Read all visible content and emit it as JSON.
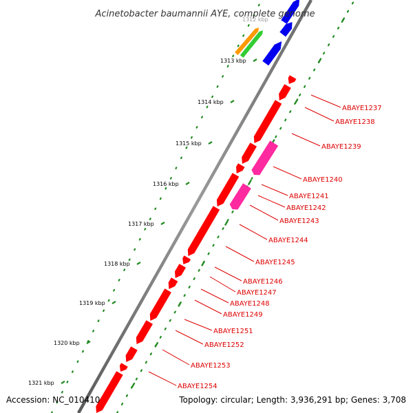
{
  "title": "Acinetobacter baumannii AYE, complete genome",
  "footer": {
    "accession": "Accession: NC_010410",
    "topology": "Topology: circular; Length: 3,936,291 bp; Genes: 3,708"
  },
  "kbp_ticks": [
    {
      "label": "1312 kbp",
      "faded": true
    },
    {
      "label": "1313 kbp"
    },
    {
      "label": "1314 kbp"
    },
    {
      "label": "1315 kbp"
    },
    {
      "label": "1316 kbp"
    },
    {
      "label": "1317 kbp"
    },
    {
      "label": "1318 kbp"
    },
    {
      "label": "1319 kbp"
    },
    {
      "label": "1320 kbp"
    },
    {
      "label": "1321 kbp"
    }
  ],
  "gene_labels": [
    "ABAYE1237",
    "ABAYE1238",
    "ABAYE1239",
    "ABAYE1240",
    "ABAYE1241",
    "ABAYE1242",
    "ABAYE1243",
    "ABAYE1244",
    "ABAYE1245",
    "ABAYE1246",
    "ABAYE1247",
    "ABAYE1248",
    "ABAYE1249",
    "ABAYE1251",
    "ABAYE1252",
    "ABAYE1253",
    "ABAYE1254"
  ],
  "colors": {
    "gene_cds": "#ff0000",
    "gene_pink": "#ff2aa0",
    "gene_blue": "#0000ee",
    "gene_green": "#33cc33",
    "gene_orange": "#ff9900",
    "backbone": "#888888",
    "gc_dots": "#228b22",
    "label": "#dd0000"
  }
}
